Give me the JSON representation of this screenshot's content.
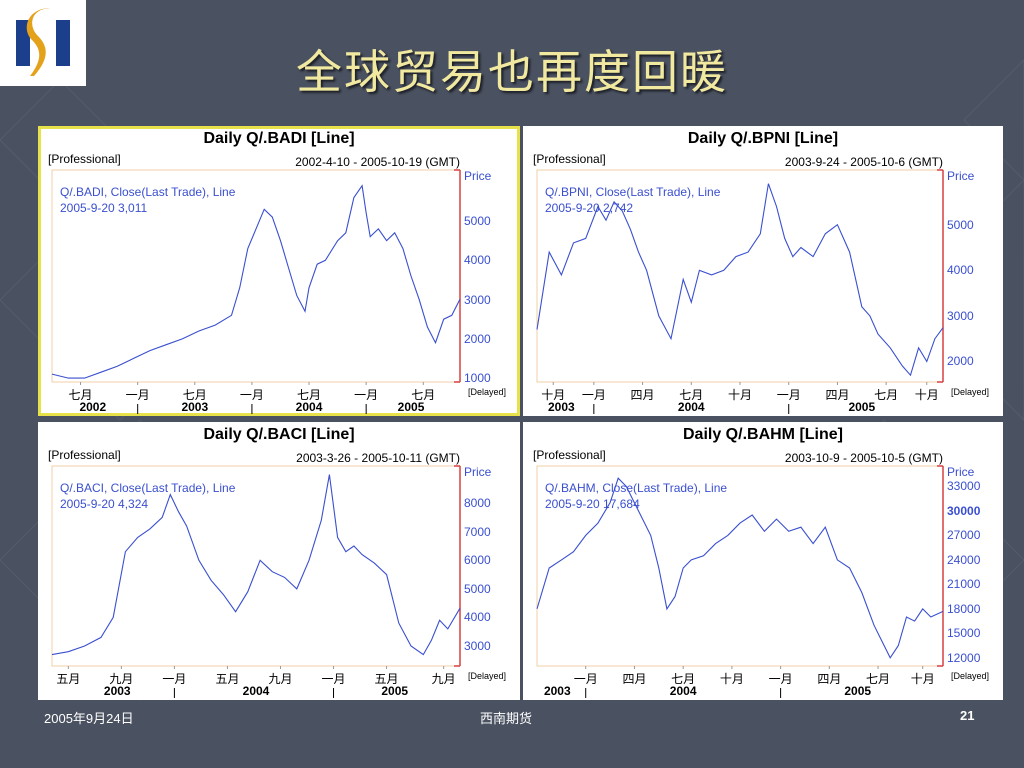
{
  "slide": {
    "title": "全球贸易也再度回暖",
    "footer_date": "2005年9月24日",
    "footer_org": "西南期货",
    "page_number": "21"
  },
  "colors": {
    "background": "#4a5160",
    "title": "#f2e9a0",
    "line": "#3a4fd0",
    "axis_red": "#d94040",
    "selection": "#e8e24a",
    "logo_navy": "#1c3f8c",
    "logo_gold": "#e3a21a"
  },
  "chart_data": [
    {
      "type": "line",
      "title": "Daily Q/.BADI [Line]",
      "tag": "[Professional]",
      "date_range": "2002-4-10 - 2005-10-19 (GMT)",
      "legend_line1": "Q/.BADI, Close(Last Trade), Line",
      "legend_line2": "2005-9-20 3,011",
      "ylabel": "Price",
      "ylim": [
        900,
        6300
      ],
      "yticks": [
        1000,
        2000,
        3000,
        4000,
        5000
      ],
      "month_ticks": [
        {
          "label": "七月",
          "t": 0.07
        },
        {
          "label": "一月",
          "t": 0.21
        },
        {
          "label": "七月",
          "t": 0.35
        },
        {
          "label": "一月",
          "t": 0.49
        },
        {
          "label": "七月",
          "t": 0.63
        },
        {
          "label": "一月",
          "t": 0.77
        },
        {
          "label": "七月",
          "t": 0.91
        }
      ],
      "year_ticks": [
        {
          "label": "2002",
          "t": 0.1
        },
        {
          "label": "2003",
          "t": 0.35
        },
        {
          "label": "2004",
          "t": 0.63
        },
        {
          "label": "2005",
          "t": 0.88
        }
      ],
      "year_separators": [
        0.21,
        0.49,
        0.77
      ],
      "delayed": "[Delayed]",
      "selected": true,
      "x": [
        0,
        0.04,
        0.08,
        0.12,
        0.16,
        0.2,
        0.24,
        0.28,
        0.32,
        0.36,
        0.4,
        0.44,
        0.46,
        0.48,
        0.5,
        0.52,
        0.54,
        0.56,
        0.58,
        0.6,
        0.62,
        0.63,
        0.65,
        0.67,
        0.7,
        0.72,
        0.74,
        0.76,
        0.77,
        0.78,
        0.8,
        0.82,
        0.84,
        0.86,
        0.88,
        0.9,
        0.92,
        0.94,
        0.96,
        0.98,
        1
      ],
      "y": [
        1100,
        1000,
        1000,
        1150,
        1300,
        1500,
        1700,
        1850,
        2000,
        2200,
        2350,
        2600,
        3300,
        4300,
        4800,
        5300,
        5100,
        4500,
        3800,
        3100,
        2700,
        3300,
        3900,
        4000,
        4500,
        4700,
        5600,
        5900,
        5200,
        4600,
        4800,
        4500,
        4700,
        4300,
        3600,
        3000,
        2300,
        1900,
        2500,
        2600,
        3011
      ]
    },
    {
      "type": "line",
      "title": "Daily Q/.BPNI [Line]",
      "tag": "[Professional]",
      "date_range": "2003-9-24 - 2005-10-6 (GMT)",
      "legend_line1": "Q/.BPNI, Close(Last Trade), Line",
      "legend_line2": "2005-9-20 2,742",
      "ylabel": "Price",
      "ylim": [
        1550,
        6200
      ],
      "yticks": [
        2000,
        3000,
        4000,
        5000
      ],
      "month_ticks": [
        {
          "label": "十月",
          "t": 0.04
        },
        {
          "label": "一月",
          "t": 0.14
        },
        {
          "label": "四月",
          "t": 0.26
        },
        {
          "label": "七月",
          "t": 0.38
        },
        {
          "label": "十月",
          "t": 0.5
        },
        {
          "label": "一月",
          "t": 0.62
        },
        {
          "label": "四月",
          "t": 0.74
        },
        {
          "label": "七月",
          "t": 0.86
        },
        {
          "label": "十月",
          "t": 0.96
        }
      ],
      "year_ticks": [
        {
          "label": "2003",
          "t": 0.06
        },
        {
          "label": "2004",
          "t": 0.38
        },
        {
          "label": "2005",
          "t": 0.8
        }
      ],
      "year_separators": [
        0.14,
        0.62
      ],
      "delayed": "[Delayed]",
      "selected": false,
      "x": [
        0,
        0.03,
        0.06,
        0.09,
        0.12,
        0.15,
        0.17,
        0.19,
        0.21,
        0.23,
        0.25,
        0.27,
        0.3,
        0.33,
        0.36,
        0.38,
        0.4,
        0.43,
        0.46,
        0.49,
        0.52,
        0.55,
        0.57,
        0.59,
        0.61,
        0.63,
        0.65,
        0.68,
        0.71,
        0.74,
        0.77,
        0.8,
        0.82,
        0.84,
        0.87,
        0.9,
        0.92,
        0.94,
        0.96,
        0.98,
        1
      ],
      "y": [
        2700,
        4400,
        3900,
        4600,
        4700,
        5400,
        5100,
        5500,
        5300,
        4900,
        4400,
        4000,
        3000,
        2500,
        3800,
        3300,
        4000,
        3900,
        4000,
        4300,
        4400,
        4800,
        5900,
        5400,
        4700,
        4300,
        4500,
        4300,
        4800,
        5000,
        4400,
        3200,
        3000,
        2600,
        2300,
        1900,
        1700,
        2300,
        2000,
        2500,
        2742
      ]
    },
    {
      "type": "line",
      "title": "Daily Q/.BACI [Line]",
      "tag": "[Professional]",
      "date_range": "2003-3-26 - 2005-10-11 (GMT)",
      "legend_line1": "Q/.BACI, Close(Last Trade), Line",
      "legend_line2": "2005-9-20 4,324",
      "ylabel": "Price",
      "ylim": [
        2300,
        9300
      ],
      "yticks": [
        3000,
        4000,
        5000,
        6000,
        7000,
        8000
      ],
      "month_ticks": [
        {
          "label": "五月",
          "t": 0.04
        },
        {
          "label": "九月",
          "t": 0.17
        },
        {
          "label": "一月",
          "t": 0.3
        },
        {
          "label": "五月",
          "t": 0.43
        },
        {
          "label": "九月",
          "t": 0.56
        },
        {
          "label": "一月",
          "t": 0.69
        },
        {
          "label": "五月",
          "t": 0.82
        },
        {
          "label": "九月",
          "t": 0.96
        }
      ],
      "year_ticks": [
        {
          "label": "2003",
          "t": 0.16
        },
        {
          "label": "2004",
          "t": 0.5
        },
        {
          "label": "2005",
          "t": 0.84
        }
      ],
      "year_separators": [
        0.3,
        0.69
      ],
      "delayed": "[Delayed]",
      "selected": false,
      "x": [
        0,
        0.04,
        0.08,
        0.12,
        0.15,
        0.18,
        0.21,
        0.24,
        0.27,
        0.29,
        0.31,
        0.33,
        0.36,
        0.39,
        0.42,
        0.45,
        0.48,
        0.51,
        0.54,
        0.57,
        0.6,
        0.63,
        0.66,
        0.68,
        0.7,
        0.72,
        0.74,
        0.76,
        0.79,
        0.82,
        0.85,
        0.88,
        0.91,
        0.93,
        0.95,
        0.97,
        1
      ],
      "y": [
        2700,
        2800,
        3000,
        3300,
        4000,
        6300,
        6800,
        7100,
        7500,
        8300,
        7700,
        7200,
        6000,
        5300,
        4800,
        4200,
        4900,
        6000,
        5600,
        5400,
        5000,
        6000,
        7400,
        9000,
        6800,
        6300,
        6500,
        6200,
        5900,
        5500,
        3800,
        3000,
        2700,
        3200,
        3900,
        3600,
        4324
      ]
    },
    {
      "type": "line",
      "title": "Daily Q/.BAHM [Line]",
      "tag": "[Professional]",
      "date_range": "2003-10-9 - 2005-10-5 (GMT)",
      "legend_line1": "Q/.BAHM, Close(Last Trade), Line",
      "legend_line2": "2005-9-20 17,684",
      "ylabel": "Price",
      "ylim": [
        11000,
        35500
      ],
      "yticks": [
        12000,
        15000,
        18000,
        21000,
        24000,
        27000,
        30000,
        33000
      ],
      "ytick_emphasis": 30000,
      "month_ticks": [
        {
          "label": "一月",
          "t": 0.12
        },
        {
          "label": "四月",
          "t": 0.24
        },
        {
          "label": "七月",
          "t": 0.36
        },
        {
          "label": "十月",
          "t": 0.48
        },
        {
          "label": "一月",
          "t": 0.6
        },
        {
          "label": "四月",
          "t": 0.72
        },
        {
          "label": "七月",
          "t": 0.84
        },
        {
          "label": "十月",
          "t": 0.95
        }
      ],
      "year_ticks": [
        {
          "label": "2003",
          "t": 0.05
        },
        {
          "label": "2004",
          "t": 0.36
        },
        {
          "label": "2005",
          "t": 0.79
        }
      ],
      "year_separators": [
        0.12,
        0.6
      ],
      "delayed": "[Delayed]",
      "selected": false,
      "x": [
        0,
        0.03,
        0.06,
        0.09,
        0.12,
        0.15,
        0.18,
        0.2,
        0.22,
        0.24,
        0.26,
        0.28,
        0.3,
        0.32,
        0.34,
        0.36,
        0.38,
        0.41,
        0.44,
        0.47,
        0.5,
        0.53,
        0.56,
        0.59,
        0.62,
        0.65,
        0.68,
        0.71,
        0.74,
        0.77,
        0.8,
        0.83,
        0.85,
        0.87,
        0.89,
        0.91,
        0.93,
        0.95,
        0.97,
        1
      ],
      "y": [
        18000,
        23000,
        24000,
        25000,
        27000,
        28500,
        31000,
        34000,
        33000,
        31000,
        29000,
        27000,
        23000,
        18000,
        19500,
        23000,
        24000,
        24500,
        26000,
        27000,
        28500,
        29500,
        27500,
        29000,
        27500,
        28000,
        26000,
        28000,
        24000,
        23000,
        20000,
        16000,
        14000,
        12000,
        13500,
        17000,
        16500,
        18000,
        17000,
        17684
      ]
    }
  ]
}
